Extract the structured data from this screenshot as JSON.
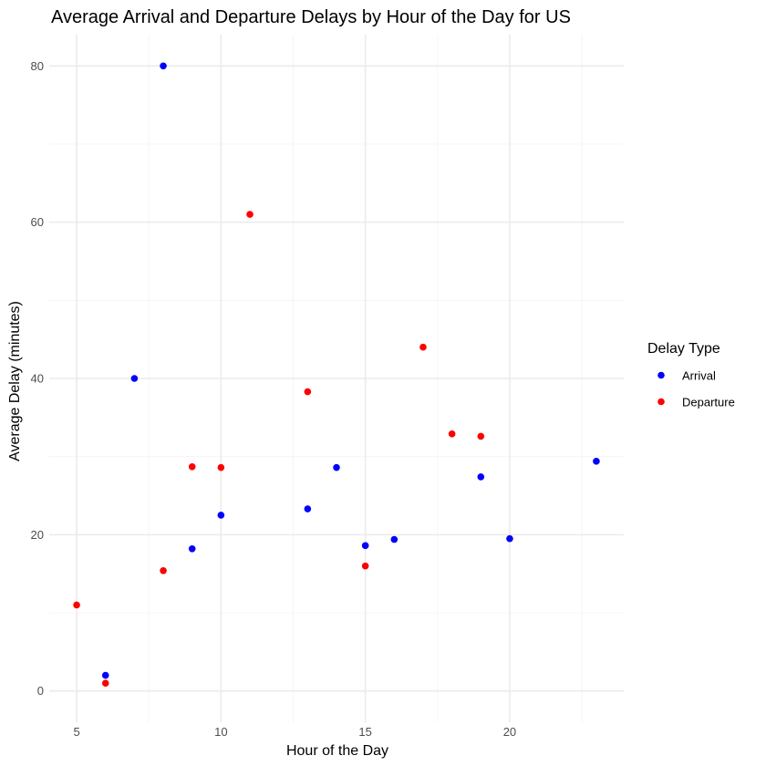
{
  "chart_data": {
    "type": "scatter",
    "title": "Average Arrival and Departure Delays by Hour of the Day for US",
    "xlabel": "Hour of the Day",
    "ylabel": "Average Delay (minutes)",
    "xlim": [
      4.05,
      23.95
    ],
    "ylim": [
      -4,
      84
    ],
    "xticks": [
      5,
      10,
      15,
      20
    ],
    "yticks": [
      0,
      20,
      40,
      60,
      80
    ],
    "grid": true,
    "legend": {
      "title": "Delay Type",
      "position": "right"
    },
    "series": [
      {
        "name": "Arrival",
        "color": "#0000ff",
        "points": [
          [
            6,
            2
          ],
          [
            7,
            40
          ],
          [
            8,
            80
          ],
          [
            9,
            18.2
          ],
          [
            10,
            22.5
          ],
          [
            13,
            23.3
          ],
          [
            14,
            28.6
          ],
          [
            15,
            18.6
          ],
          [
            16,
            19.4
          ],
          [
            19,
            27.4
          ],
          [
            20,
            19.5
          ],
          [
            23,
            29.4
          ]
        ]
      },
      {
        "name": "Departure",
        "color": "#ff0000",
        "points": [
          [
            5,
            11
          ],
          [
            6,
            1
          ],
          [
            8,
            15.4
          ],
          [
            9,
            28.7
          ],
          [
            10,
            28.6
          ],
          [
            11,
            61
          ],
          [
            13,
            38.3
          ],
          [
            15,
            16
          ],
          [
            17,
            44
          ],
          [
            18,
            32.9
          ],
          [
            19,
            32.6
          ]
        ]
      }
    ]
  }
}
